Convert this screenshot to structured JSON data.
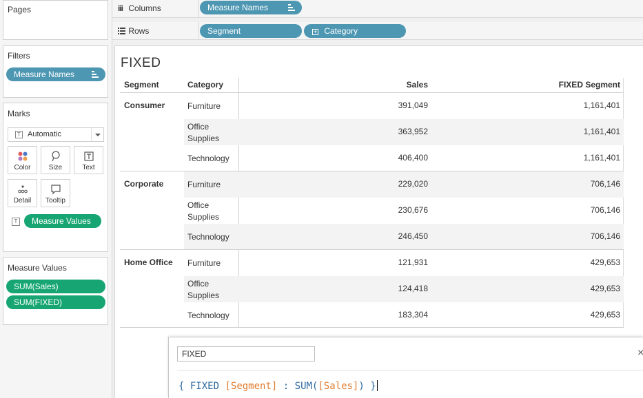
{
  "left_panel": {
    "pages_title": "Pages",
    "filters_title": "Filters",
    "filters": [
      {
        "label": "Measure Names"
      }
    ],
    "marks_title": "Marks",
    "marks_type": "Automatic",
    "mark_buttons": [
      {
        "label": "Color",
        "icon": "color-dots-icon"
      },
      {
        "label": "Size",
        "icon": "size-lasso-icon"
      },
      {
        "label": "Text",
        "icon": "text-box-icon"
      },
      {
        "label": "Detail",
        "icon": "detail-dots-icon"
      },
      {
        "label": "Tooltip",
        "icon": "tooltip-bubble-icon"
      }
    ],
    "marks_pill": "Measure Values",
    "measure_values_title": "Measure Values",
    "measure_values": [
      "SUM(Sales)",
      "SUM(FIXED)"
    ]
  },
  "shelves": {
    "columns_label": "Columns",
    "columns_pills": [
      "Measure Names"
    ],
    "rows_label": "Rows",
    "rows_pills": [
      "Segment",
      "Category"
    ]
  },
  "view": {
    "title": "FIXED",
    "headers": {
      "segment": "Segment",
      "category": "Category",
      "sales": "Sales",
      "fixed": "FIXED Segment"
    },
    "groups": [
      {
        "segment": "Consumer",
        "rows": [
          {
            "category": "Furniture",
            "sales": "391,049",
            "fixed": "1,161,401"
          },
          {
            "category": "Office\nSupplies",
            "sales": "363,952",
            "fixed": "1,161,401"
          },
          {
            "category": "Technology",
            "sales": "406,400",
            "fixed": "1,161,401"
          }
        ]
      },
      {
        "segment": "Corporate",
        "rows": [
          {
            "category": "Furniture",
            "sales": "229,020",
            "fixed": "706,146"
          },
          {
            "category": "Office\nSupplies",
            "sales": "230,676",
            "fixed": "706,146"
          },
          {
            "category": "Technology",
            "sales": "246,450",
            "fixed": "706,146"
          }
        ]
      },
      {
        "segment": "Home Office",
        "rows": [
          {
            "category": "Furniture",
            "sales": "121,931",
            "fixed": "429,653"
          },
          {
            "category": "Office\nSupplies",
            "sales": "124,418",
            "fixed": "429,653"
          },
          {
            "category": "Technology",
            "sales": "183,304",
            "fixed": "429,653"
          }
        ]
      }
    ]
  },
  "calc_editor": {
    "name": "FIXED",
    "formula": {
      "open": "{",
      "keyword": "FIXED",
      "dimension": "[Segment]",
      "colon": ":",
      "func": "SUM(",
      "measure": "[Sales]",
      "close_paren": ")",
      "close": "}"
    },
    "close_glyph": "×"
  },
  "colors": {
    "dimension_pill": "#4e97b2",
    "measure_pill": "#17a673",
    "formula_keyword": "#2e6aa0",
    "formula_field": "#e07b2d"
  }
}
